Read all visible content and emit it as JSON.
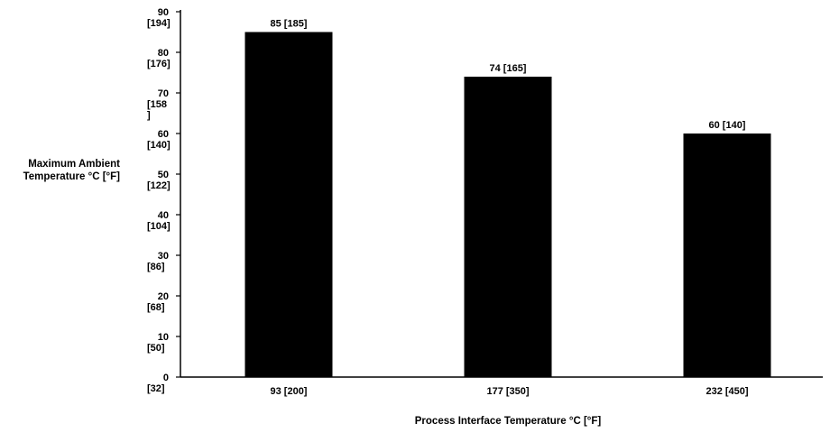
{
  "chart_data": {
    "type": "bar",
    "title": "",
    "xlabel": "Process Interface Temperature °C [°F]",
    "ylabel_lines": [
      "Maximum Ambient",
      "Temperature °C [°F]"
    ],
    "categories": [
      "93 [200]",
      "177 [350]",
      "232  [450]"
    ],
    "values": [
      85,
      74,
      60
    ],
    "data_labels": [
      "85  [185]",
      "74  [165]",
      "60  [140]"
    ],
    "ylim": [
      0,
      90
    ],
    "y_ticks": [
      {
        "value": 0,
        "lines": [
          "0",
          "[32]"
        ]
      },
      {
        "value": 10,
        "lines": [
          "10",
          "[50]"
        ]
      },
      {
        "value": 20,
        "lines": [
          "20",
          "[68]"
        ]
      },
      {
        "value": 30,
        "lines": [
          "30",
          "[86]"
        ]
      },
      {
        "value": 40,
        "lines": [
          "40",
          "[104]"
        ]
      },
      {
        "value": 50,
        "lines": [
          "50",
          "[122]"
        ]
      },
      {
        "value": 60,
        "lines": [
          "60",
          "[140]"
        ]
      },
      {
        "value": 70,
        "lines": [
          "70",
          "[158",
          "]"
        ]
      },
      {
        "value": 80,
        "lines": [
          "80",
          "[176]"
        ]
      },
      {
        "value": 90,
        "lines": [
          "90",
          "[194]"
        ]
      }
    ],
    "grid": false,
    "legend": "none",
    "bar_color": "#000000"
  }
}
